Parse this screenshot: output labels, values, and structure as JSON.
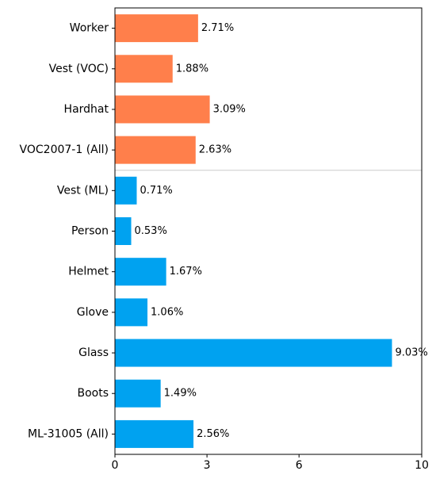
{
  "chart_data": {
    "type": "bar",
    "orientation": "horizontal",
    "categories": [
      "Worker",
      "Vest (VOC)",
      "Hardhat",
      "VOC2007-1 (All)",
      "Vest (ML)",
      "Person",
      "Helmet",
      "Glove",
      "Glass",
      "Boots",
      "ML-31005 (All)"
    ],
    "values": [
      2.71,
      1.88,
      3.09,
      2.63,
      0.71,
      0.53,
      1.67,
      1.06,
      9.03,
      1.49,
      2.56
    ],
    "data_labels": [
      "2.71%",
      "1.88%",
      "3.09%",
      "2.63%",
      "0.71%",
      "0.53%",
      "1.67%",
      "1.06%",
      "9.03%",
      "1.49%",
      "2.56%"
    ],
    "groups": [
      {
        "members": [
          "Worker",
          "Vest (VOC)",
          "Hardhat",
          "VOC2007-1 (All)"
        ],
        "color": "#ff7f4b"
      },
      {
        "members": [
          "Vest (ML)",
          "Person",
          "Helmet",
          "Glove",
          "Glass",
          "Boots",
          "ML-31005 (All)"
        ],
        "color": "#00a2f0"
      }
    ],
    "xlim": [
      0,
      10
    ],
    "xticks": [
      0,
      3,
      6,
      10
    ],
    "separator_line_between": [
      "VOC2007-1 (All)",
      "Vest (ML)"
    ],
    "separator_color": "#cccccc",
    "grid": false,
    "title": "",
    "xlabel": "",
    "ylabel": ""
  }
}
